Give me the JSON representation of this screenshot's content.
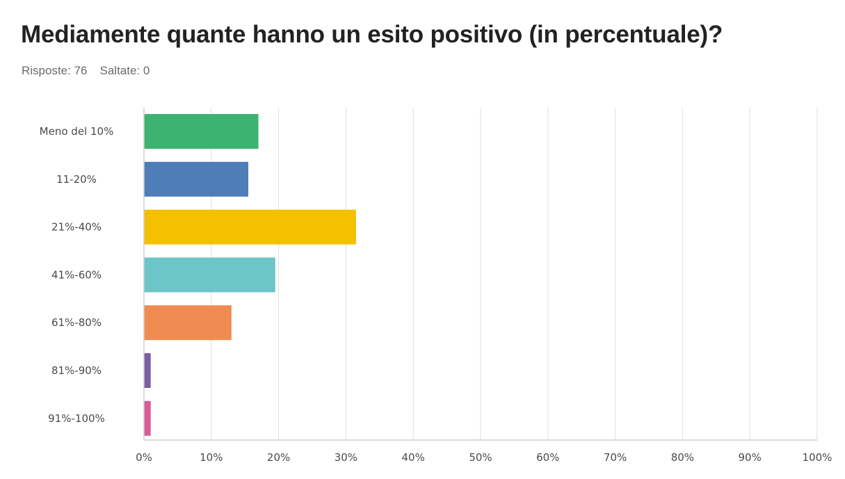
{
  "header": {
    "title": "Mediamente quante hanno un esito positivo (in percentuale)?",
    "responses_label": "Risposte: 76",
    "skipped_label": "Saltate: 0"
  },
  "chart_data": {
    "type": "bar",
    "orientation": "horizontal",
    "title": "Mediamente quante hanno un esito positivo (in percentuale)?",
    "xlabel": "",
    "ylabel": "",
    "categories": [
      "Meno del 10%",
      "11-20%",
      "21%-40%",
      "41%-60%",
      "61%-80%",
      "81%-90%",
      "91%-100%"
    ],
    "values": [
      17,
      15.5,
      31.5,
      19.5,
      13,
      1,
      1
    ],
    "colors": [
      "#3cb371",
      "#4f7db8",
      "#f5c000",
      "#6cc5c8",
      "#f08c52",
      "#7b5ea3",
      "#d85c9a"
    ],
    "xlim": [
      0,
      100
    ],
    "xticks": [
      0,
      10,
      20,
      30,
      40,
      50,
      60,
      70,
      80,
      90,
      100
    ],
    "xtick_labels": [
      "0%",
      "10%",
      "20%",
      "30%",
      "40%",
      "50%",
      "60%",
      "70%",
      "80%",
      "90%",
      "100%"
    ],
    "grid": true,
    "legend": "none"
  }
}
